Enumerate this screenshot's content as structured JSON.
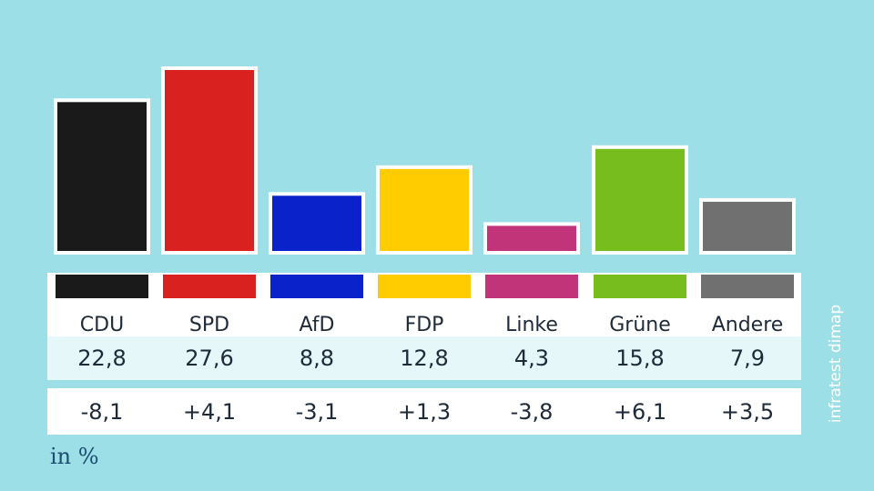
{
  "chart_data": {
    "type": "bar",
    "categories": [
      "CDU",
      "SPD",
      "AfD",
      "FDP",
      "Linke",
      "Grüne",
      "Andere"
    ],
    "values": [
      22.8,
      27.6,
      8.8,
      12.8,
      4.3,
      15.8,
      7.9
    ],
    "value_labels": [
      "22,8",
      "27,6",
      "8,8",
      "12,8",
      "4,3",
      "15,8",
      "7,9"
    ],
    "changes": [
      -8.1,
      4.1,
      -3.1,
      1.3,
      -3.8,
      6.1,
      3.5
    ],
    "change_labels": [
      "-8,1",
      "+4,1",
      "-3,1",
      "+1,3",
      "-3,8",
      "+6,1",
      "+3,5"
    ],
    "colors": [
      "#1a1a1a",
      "#d9211f",
      "#0a22c9",
      "#ffcc00",
      "#c23479",
      "#77bd1e",
      "#707070"
    ],
    "unit_label": "in %",
    "source": "infratest dimap",
    "ylim": [
      0,
      30
    ],
    "legend": "none",
    "grid": false
  }
}
